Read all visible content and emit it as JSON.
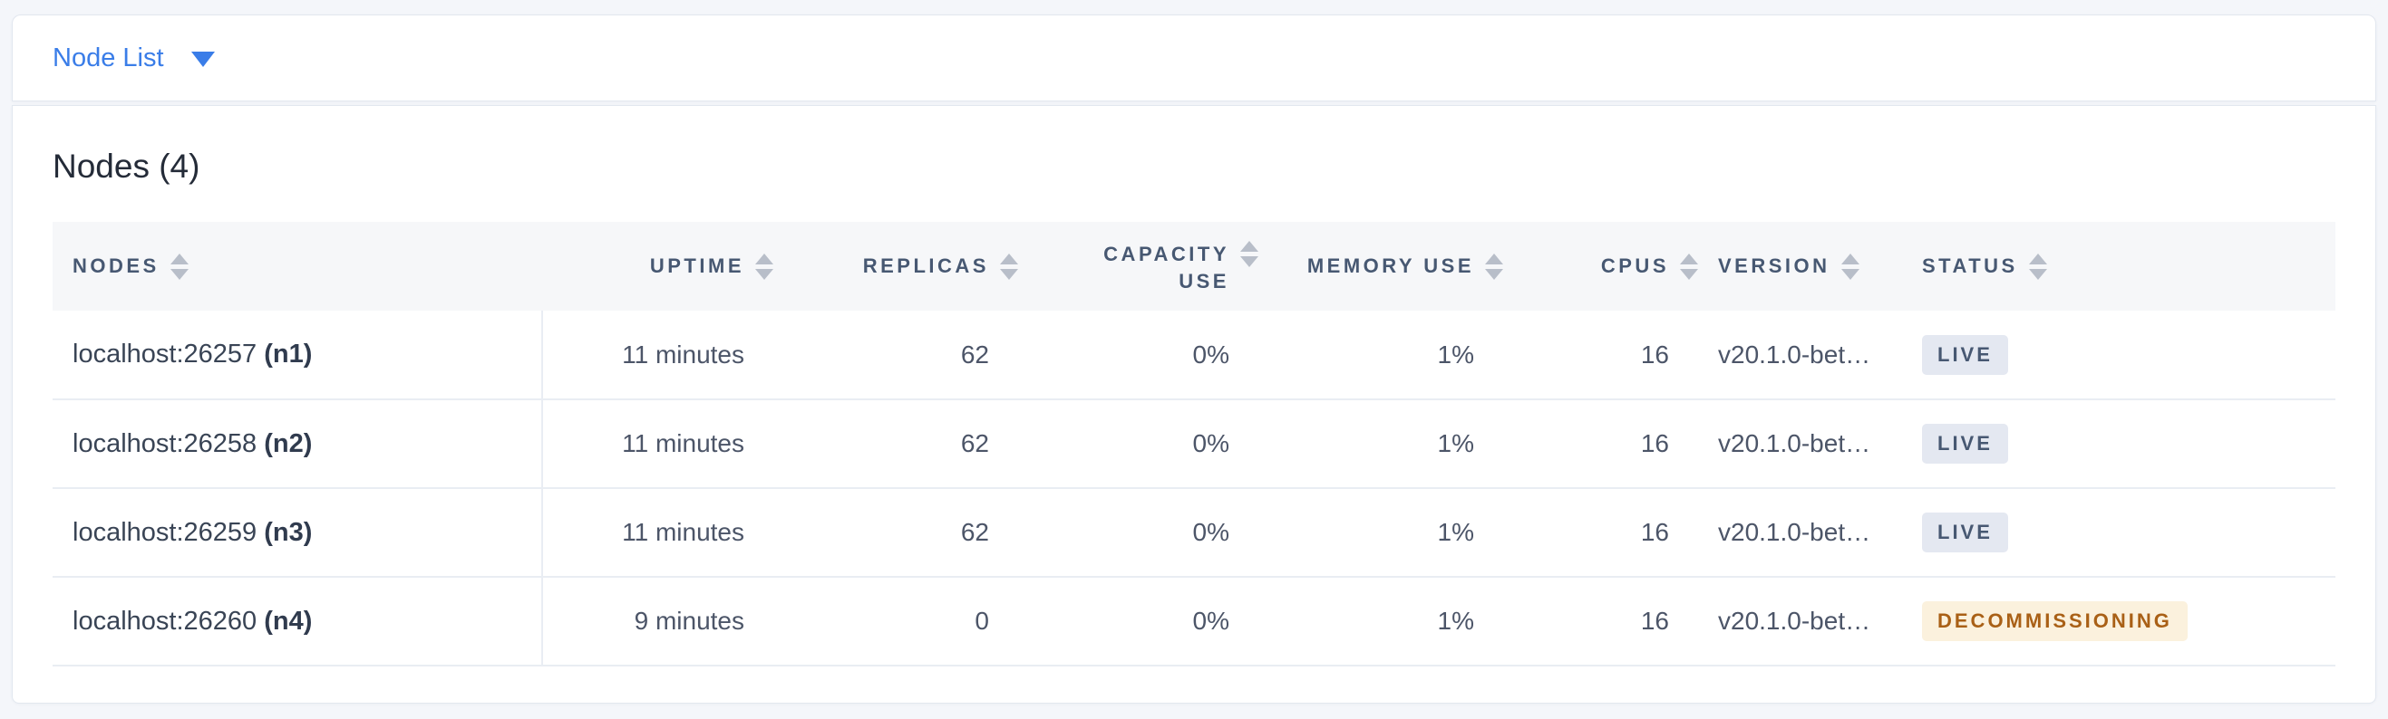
{
  "view_selector": {
    "label": "Node List"
  },
  "panel": {
    "title": "Nodes (4)"
  },
  "table": {
    "columns": [
      {
        "key": "nodes",
        "label": "Nodes",
        "align": "left"
      },
      {
        "key": "uptime",
        "label": "Uptime",
        "align": "right"
      },
      {
        "key": "replicas",
        "label": "Replicas",
        "align": "right"
      },
      {
        "key": "capacity_use",
        "label": "Capacity Use",
        "align": "right",
        "wrap": true
      },
      {
        "key": "memory_use",
        "label": "Memory Use",
        "align": "right"
      },
      {
        "key": "cpus",
        "label": "CPUs",
        "align": "right"
      },
      {
        "key": "version",
        "label": "Version",
        "align": "left"
      },
      {
        "key": "status",
        "label": "Status",
        "align": "left"
      }
    ],
    "rows": [
      {
        "node_address": "localhost:26257",
        "node_id": "(n1)",
        "uptime": "11 minutes",
        "replicas": "62",
        "capacity_use": "0%",
        "memory_use": "1%",
        "cpus": "16",
        "version": "v20.1.0-bet…",
        "status": "LIVE",
        "status_type": "live"
      },
      {
        "node_address": "localhost:26258",
        "node_id": "(n2)",
        "uptime": "11 minutes",
        "replicas": "62",
        "capacity_use": "0%",
        "memory_use": "1%",
        "cpus": "16",
        "version": "v20.1.0-bet…",
        "status": "LIVE",
        "status_type": "live"
      },
      {
        "node_address": "localhost:26259",
        "node_id": "(n3)",
        "uptime": "11 minutes",
        "replicas": "62",
        "capacity_use": "0%",
        "memory_use": "1%",
        "cpus": "16",
        "version": "v20.1.0-bet…",
        "status": "LIVE",
        "status_type": "live"
      },
      {
        "node_address": "localhost:26260",
        "node_id": "(n4)",
        "uptime": "9 minutes",
        "replicas": "0",
        "capacity_use": "0%",
        "memory_use": "1%",
        "cpus": "16",
        "version": "v20.1.0-bet…",
        "status": "DECOMMISSIONING",
        "status_type": "decommissioning"
      }
    ]
  },
  "colors": {
    "accent_blue": "#3a7de8",
    "header_text": "#475872",
    "badge_live_bg": "#e4e8f1",
    "badge_live_text": "#475872",
    "badge_decommissioning_bg": "#fbf1dd",
    "badge_decommissioning_text": "#a96016",
    "page_background": "#f4f6fa",
    "table_header_bg": "#f6f7f9",
    "row_border": "#e9edf3"
  }
}
